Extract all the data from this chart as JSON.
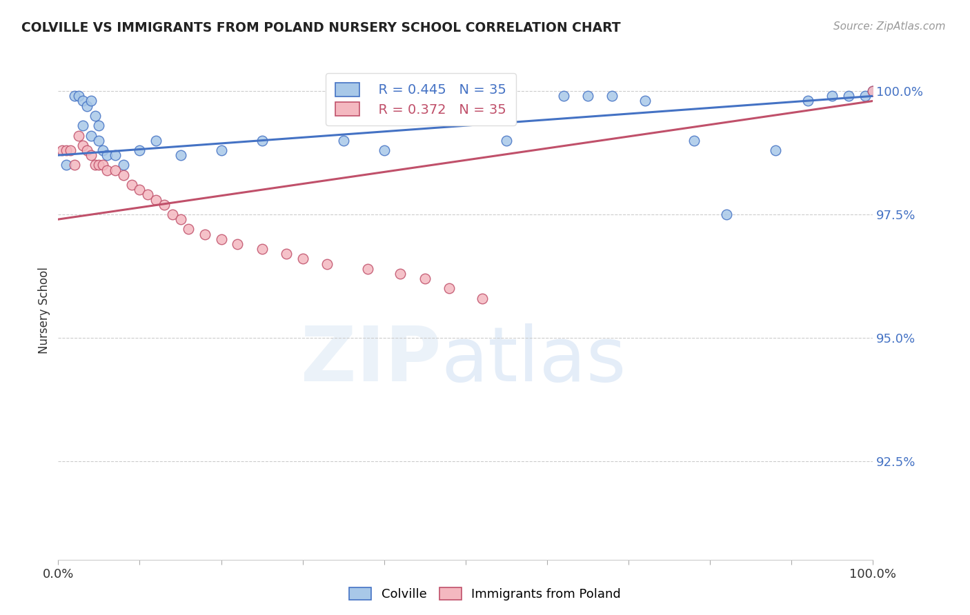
{
  "title": "COLVILLE VS IMMIGRANTS FROM POLAND NURSERY SCHOOL CORRELATION CHART",
  "source": "Source: ZipAtlas.com",
  "ylabel": "Nursery School",
  "xlim": [
    0,
    1
  ],
  "ylim": [
    0.905,
    1.006
  ],
  "yticks": [
    0.925,
    0.95,
    0.975,
    1.0
  ],
  "ytick_labels": [
    "92.5%",
    "95.0%",
    "97.5%",
    "100.0%"
  ],
  "xticks": [
    0.0,
    0.1,
    0.2,
    0.3,
    0.4,
    0.5,
    0.6,
    0.7,
    0.8,
    0.9,
    1.0
  ],
  "xtick_labels": [
    "0.0%",
    "",
    "",
    "",
    "",
    "",
    "",
    "",
    "",
    "",
    "100.0%"
  ],
  "colville_color": "#a8c8e8",
  "poland_color": "#f4b8c0",
  "colville_line_color": "#4472c4",
  "poland_line_color": "#c0506a",
  "legend_R_colville": "R = 0.445",
  "legend_N_colville": "N = 35",
  "legend_R_poland": "R = 0.372",
  "legend_N_poland": "N = 35",
  "colville_x": [
    0.01,
    0.02,
    0.025,
    0.03,
    0.03,
    0.035,
    0.04,
    0.04,
    0.045,
    0.05,
    0.05,
    0.055,
    0.06,
    0.07,
    0.08,
    0.1,
    0.12,
    0.15,
    0.2,
    0.25,
    0.35,
    0.4,
    0.55,
    0.62,
    0.65,
    0.68,
    0.72,
    0.78,
    0.82,
    0.88,
    0.92,
    0.95,
    0.97,
    0.99,
    1.0
  ],
  "colville_y": [
    0.985,
    0.999,
    0.999,
    0.998,
    0.993,
    0.997,
    0.998,
    0.991,
    0.995,
    0.993,
    0.99,
    0.988,
    0.987,
    0.987,
    0.985,
    0.988,
    0.99,
    0.987,
    0.988,
    0.99,
    0.99,
    0.988,
    0.99,
    0.999,
    0.999,
    0.999,
    0.998,
    0.99,
    0.975,
    0.988,
    0.998,
    0.999,
    0.999,
    0.999,
    1.0
  ],
  "poland_x": [
    0.005,
    0.01,
    0.015,
    0.02,
    0.025,
    0.03,
    0.035,
    0.04,
    0.045,
    0.05,
    0.055,
    0.06,
    0.07,
    0.08,
    0.09,
    0.1,
    0.11,
    0.12,
    0.13,
    0.14,
    0.15,
    0.16,
    0.18,
    0.2,
    0.22,
    0.25,
    0.28,
    0.3,
    0.33,
    0.38,
    0.42,
    0.45,
    0.48,
    0.52,
    1.0
  ],
  "poland_y": [
    0.988,
    0.988,
    0.988,
    0.985,
    0.991,
    0.989,
    0.988,
    0.987,
    0.985,
    0.985,
    0.985,
    0.984,
    0.984,
    0.983,
    0.981,
    0.98,
    0.979,
    0.978,
    0.977,
    0.975,
    0.974,
    0.972,
    0.971,
    0.97,
    0.969,
    0.968,
    0.967,
    0.966,
    0.965,
    0.964,
    0.963,
    0.962,
    0.96,
    0.958,
    1.0
  ],
  "background_color": "#ffffff",
  "grid_color": "#cccccc"
}
